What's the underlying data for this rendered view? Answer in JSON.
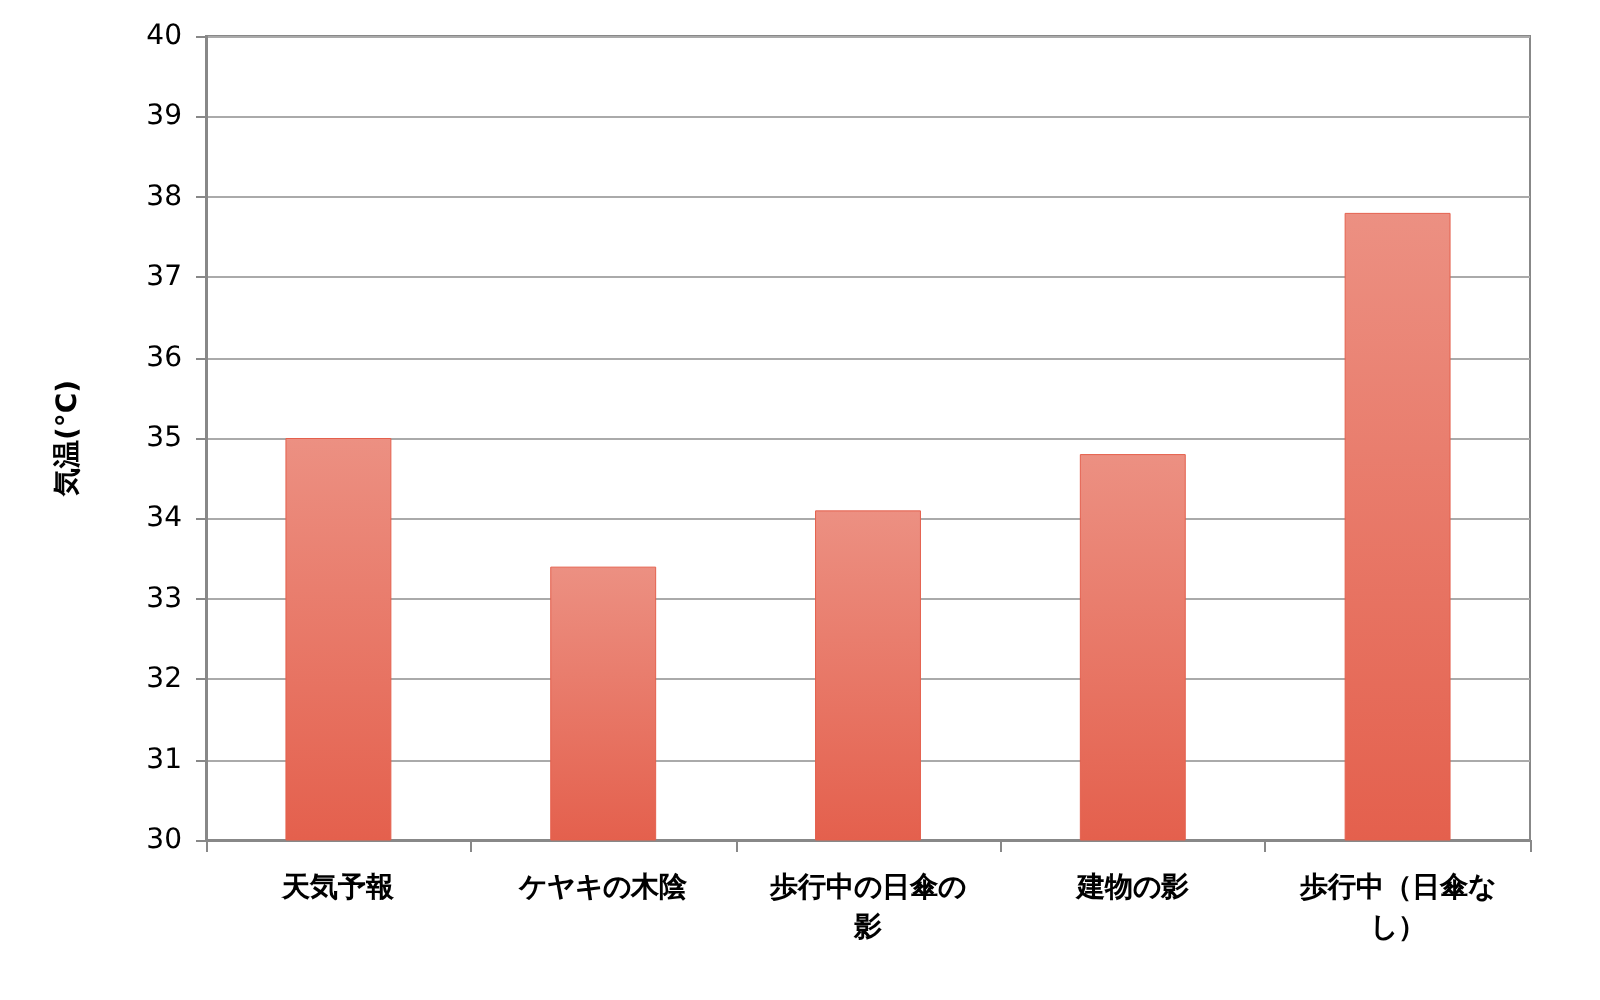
{
  "chart_data": {
    "type": "bar",
    "ylabel": "気温(°C)",
    "categories": [
      "天気予報",
      "ケヤキの木陰",
      "歩行中の日傘の影",
      "建物の影",
      "歩行中（日傘なし）"
    ],
    "values": [
      35.0,
      33.4,
      34.1,
      34.8,
      37.8
    ],
    "color": "#e4604d",
    "ylim": [
      30,
      40
    ],
    "yticks": [
      30,
      31,
      32,
      33,
      34,
      35,
      36,
      37,
      38,
      39,
      40
    ],
    "grid": "y"
  }
}
